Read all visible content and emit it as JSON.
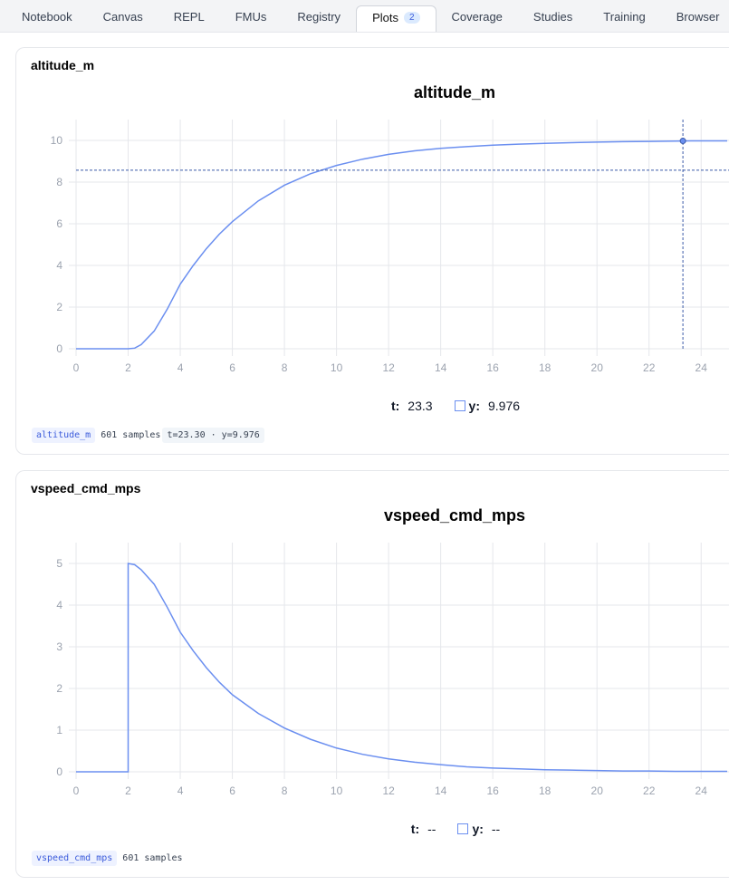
{
  "tabs": [
    {
      "label": "Notebook"
    },
    {
      "label": "Canvas"
    },
    {
      "label": "REPL"
    },
    {
      "label": "FMUs"
    },
    {
      "label": "Registry"
    },
    {
      "label": "Plots",
      "badge": 2,
      "active": true
    },
    {
      "label": "Coverage"
    },
    {
      "label": "Studies"
    },
    {
      "label": "Training"
    },
    {
      "label": "Browser"
    }
  ],
  "chart_data": [
    {
      "type": "line",
      "heading": "altitude_m",
      "title": "altitude_m",
      "color": "#6b8ff0",
      "grid": true,
      "x": [
        0,
        1,
        2,
        2.25,
        2.5,
        3,
        3.5,
        4,
        4.5,
        5,
        5.5,
        6,
        7,
        8,
        9,
        10,
        11,
        12,
        13,
        14,
        15,
        16,
        17,
        18,
        19,
        20,
        21,
        22,
        23,
        24,
        25
      ],
      "values": [
        0,
        0,
        0,
        0.03,
        0.2,
        0.85,
        1.9,
        3.1,
        4.0,
        4.8,
        5.5,
        6.1,
        7.1,
        7.85,
        8.4,
        8.8,
        9.1,
        9.33,
        9.5,
        9.62,
        9.7,
        9.77,
        9.82,
        9.86,
        9.89,
        9.92,
        9.94,
        9.95,
        9.97,
        9.98,
        9.98
      ],
      "xlim": [
        0,
        25
      ],
      "xticks": [
        0,
        2,
        4,
        6,
        8,
        10,
        12,
        14,
        16,
        18,
        20,
        22,
        24
      ],
      "ylim": [
        0,
        11
      ],
      "yticks": [
        0,
        2,
        4,
        6,
        8,
        10
      ],
      "cursor_y": 8.57,
      "readout": {
        "t_label": "t:",
        "t": 23.3,
        "y_label": "y:",
        "y": 9.976
      },
      "footer": {
        "tag": "altitude_m",
        "samples": "601 samples",
        "info": "t=23.30 · y=9.976"
      }
    },
    {
      "type": "line",
      "heading": "vspeed_cmd_mps",
      "title": "vspeed_cmd_mps",
      "color": "#6b8ff0",
      "grid": true,
      "x": [
        0,
        1,
        2,
        2,
        2.25,
        2.5,
        3,
        3.5,
        4,
        4.5,
        5,
        5.5,
        6,
        7,
        8,
        9,
        10,
        11,
        12,
        13,
        14,
        15,
        16,
        17,
        18,
        19,
        20,
        21,
        22,
        23,
        24,
        25
      ],
      "values": [
        0,
        0,
        0,
        5,
        4.97,
        4.85,
        4.5,
        3.95,
        3.35,
        2.9,
        2.5,
        2.15,
        1.85,
        1.4,
        1.05,
        0.78,
        0.57,
        0.42,
        0.31,
        0.23,
        0.17,
        0.12,
        0.09,
        0.07,
        0.05,
        0.04,
        0.03,
        0.02,
        0.02,
        0.01,
        0.01,
        0.01
      ],
      "xlim": [
        0,
        25
      ],
      "xticks": [
        0,
        2,
        4,
        6,
        8,
        10,
        12,
        14,
        16,
        18,
        20,
        22,
        24
      ],
      "ylim": [
        0,
        5.5
      ],
      "yticks": [
        0,
        1,
        2,
        3,
        4,
        5
      ],
      "readout": {
        "t_label": "t:",
        "t": "--",
        "y_label": "y:",
        "y": "--"
      },
      "footer": {
        "tag": "vspeed_cmd_mps",
        "samples": "601 samples"
      }
    }
  ]
}
